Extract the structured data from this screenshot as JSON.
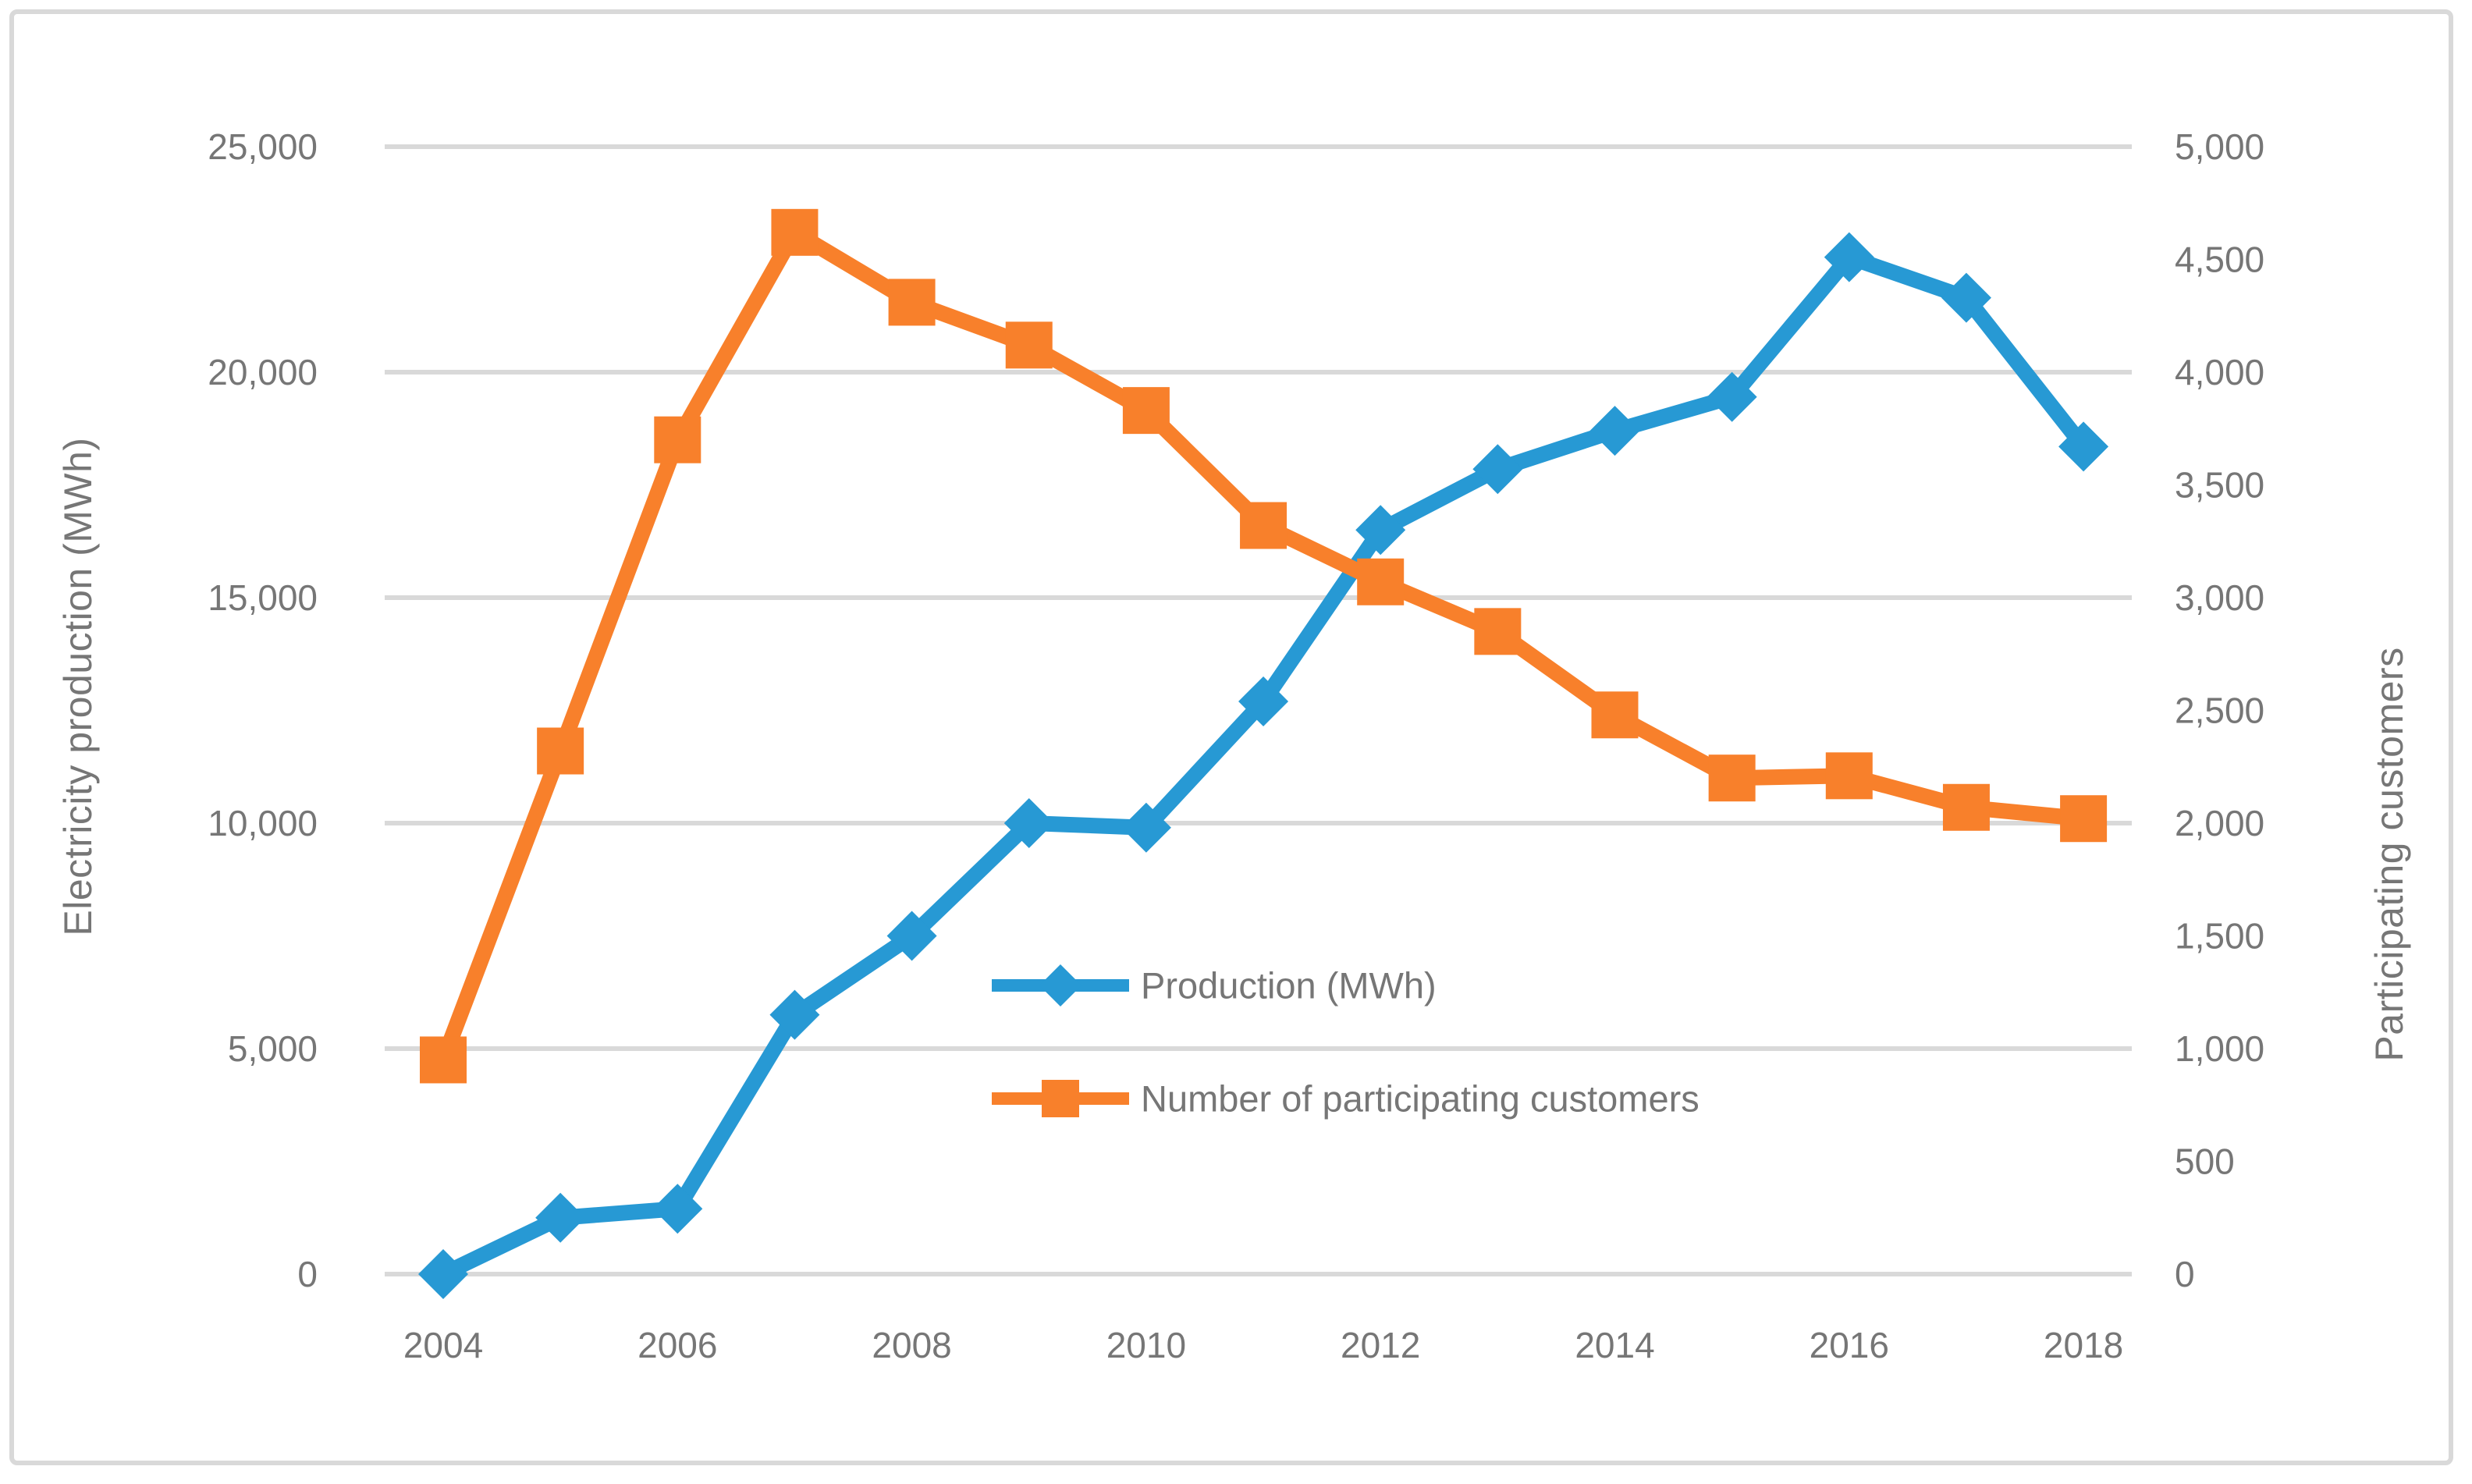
{
  "figure": {
    "background_color": "#ffffff",
    "border_color": "#d9d9d9",
    "text_color": "#767676",
    "grid_color": "#d9d9d9"
  },
  "chart_data": {
    "type": "line",
    "title": "",
    "x": [
      2004,
      2005,
      2006,
      2007,
      2008,
      2009,
      2010,
      2011,
      2012,
      2013,
      2014,
      2015,
      2016,
      2017,
      2018
    ],
    "series": [
      {
        "name": "Production (MWh)",
        "axis": "left",
        "color": "#2799d4",
        "marker": "diamond",
        "values": [
          0,
          1250,
          1450,
          5750,
          7500,
          10000,
          9900,
          12700,
          16500,
          17850,
          18700,
          19450,
          22550,
          21650,
          18350
        ]
      },
      {
        "name": "Number of participating customers",
        "axis": "right",
        "color": "#f8802b",
        "marker": "square",
        "values": [
          950,
          2320,
          3700,
          4620,
          4310,
          4120,
          3830,
          3320,
          3070,
          2850,
          2480,
          2200,
          2210,
          2070,
          2020
        ]
      }
    ],
    "left_axis": {
      "title": "Electricity production (MWh)",
      "min": 0,
      "max": 25000,
      "tick_step": 5000,
      "tick_labels": [
        "0",
        "5,000",
        "10,000",
        "15,000",
        "20,000",
        "25,000"
      ]
    },
    "right_axis": {
      "title": "Participating customers",
      "min": 0,
      "max": 5000,
      "tick_step": 500,
      "tick_labels": [
        "0",
        "500",
        "1,000",
        "1,500",
        "2,000",
        "2,500",
        "3,000",
        "3,500",
        "4,000",
        "4,500",
        "5,000"
      ]
    },
    "x_axis": {
      "tick_labels": [
        "2004",
        "2006",
        "2008",
        "2010",
        "2012",
        "2014",
        "2016",
        "2018"
      ],
      "label_every": 2
    },
    "grid": true,
    "legend_position": "inside-center-right"
  }
}
